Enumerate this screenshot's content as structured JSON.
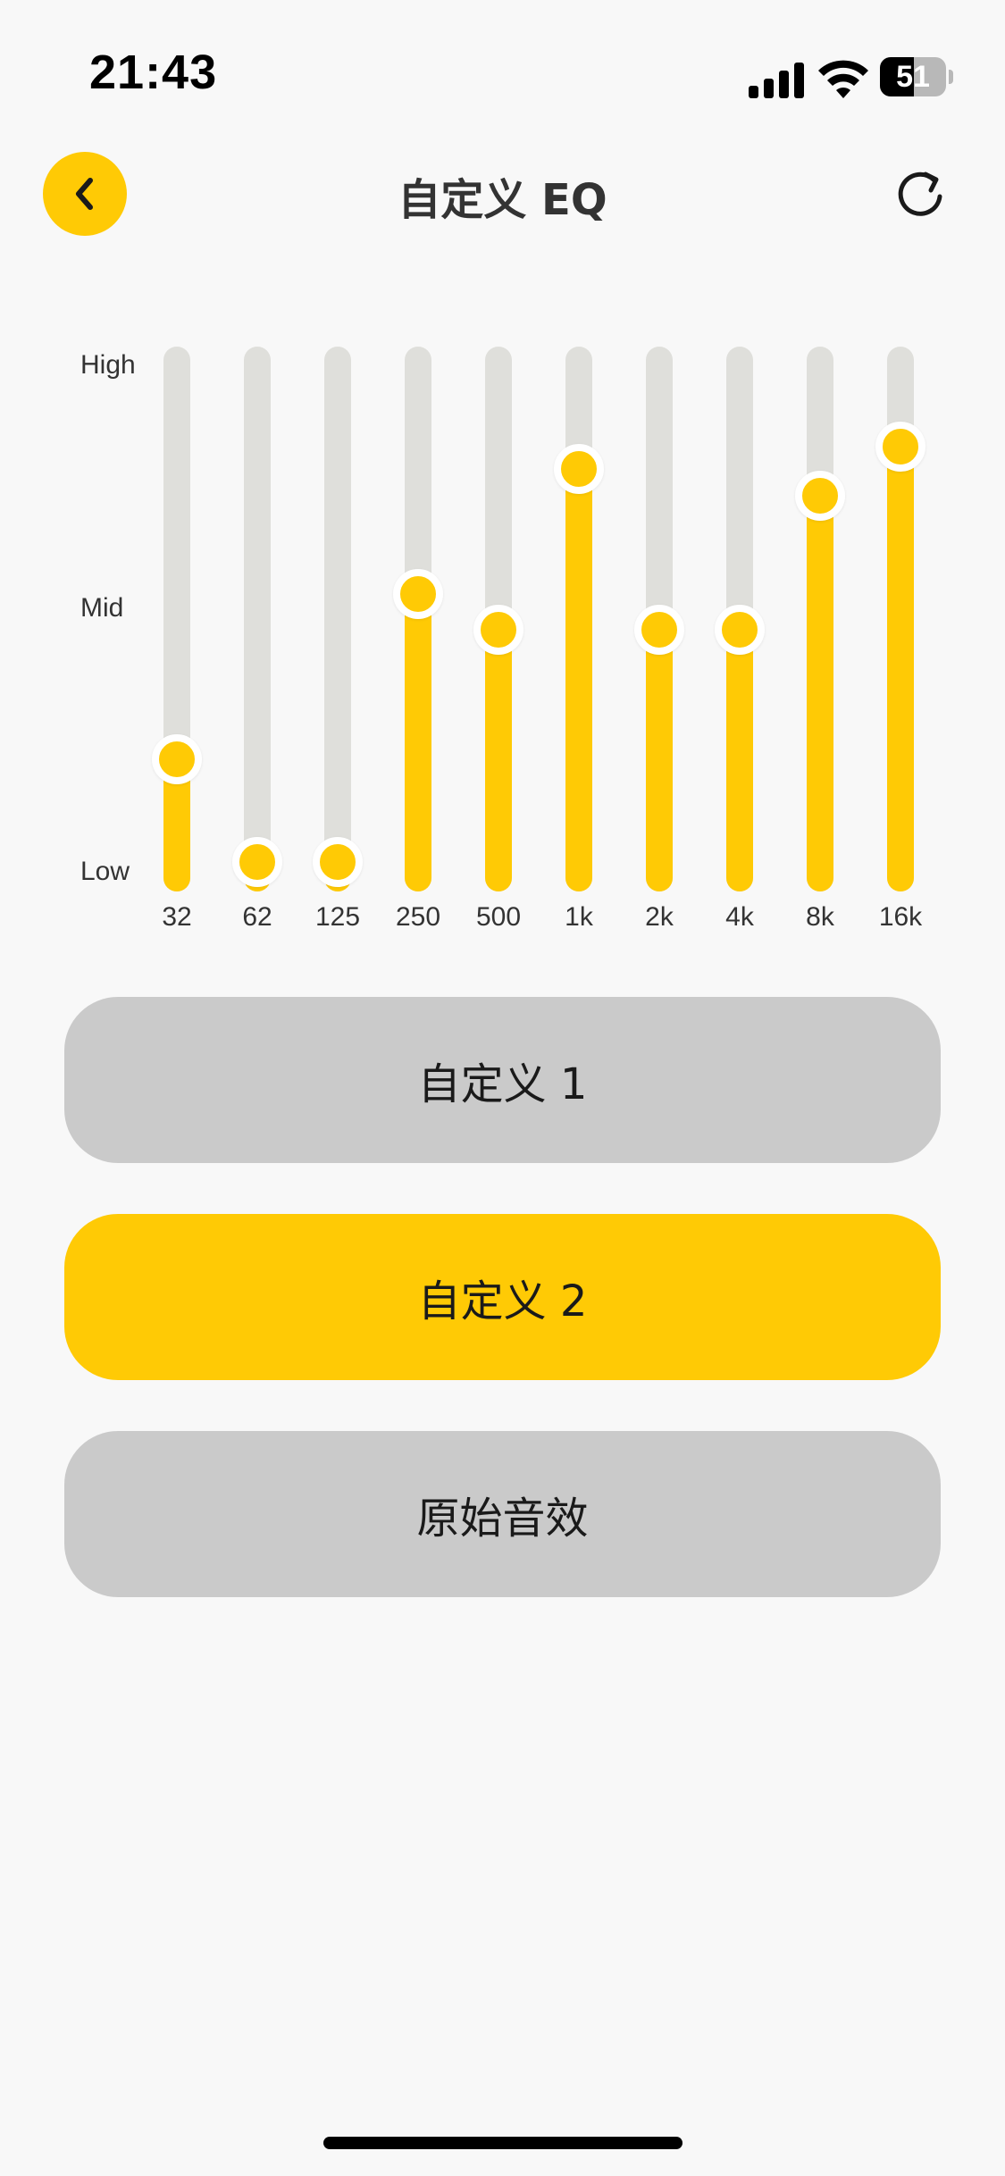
{
  "status_bar": {
    "time": "21:43",
    "battery": "51",
    "battery_level": 0.51
  },
  "header": {
    "title": "自定义 EQ",
    "back_icon": "chevron-left-icon",
    "reset_icon": "refresh-icon"
  },
  "equalizer": {
    "levels": {
      "high": "High",
      "mid": "Mid",
      "low": "Low"
    },
    "bands": [
      {
        "label": "32",
        "level": 0.23
      },
      {
        "label": "62",
        "level": 0.0
      },
      {
        "label": "125",
        "level": 0.0
      },
      {
        "label": "250",
        "level": 0.6
      },
      {
        "label": "500",
        "level": 0.52
      },
      {
        "label": "1k",
        "level": 0.88
      },
      {
        "label": "2k",
        "level": 0.52
      },
      {
        "label": "4k",
        "level": 0.52
      },
      {
        "label": "8k",
        "level": 0.82
      },
      {
        "label": "16k",
        "level": 0.93
      }
    ]
  },
  "presets": [
    {
      "label": "自定义 1",
      "selected": false
    },
    {
      "label": "自定义 2",
      "selected": true
    },
    {
      "label": "原始音效",
      "selected": false
    }
  ],
  "colors": {
    "accent": "#ffca05",
    "track": "#dfdfdb",
    "inactive_button": "#cacaca",
    "background": "#f8f8f8"
  }
}
